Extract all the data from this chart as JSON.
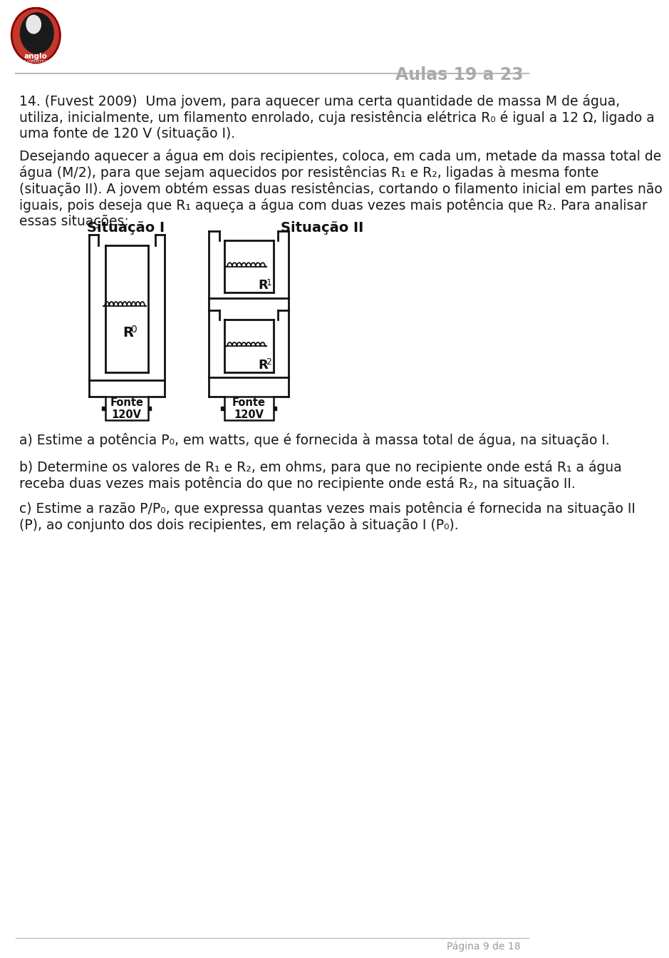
{
  "bg_color": "#ffffff",
  "header_right_text": "Aulas 19 a 23",
  "situacao1_label": "Situação I",
  "situacao2_label": "Situação II",
  "R0_label": "R",
  "R0_sub": "0",
  "R1_label": "R",
  "R1_sub": "1",
  "R2_label": "R",
  "R2_sub": "2",
  "fonte_line1": "Fonte",
  "fonte_line2": "120V",
  "lines_p1": [
    "14. (Fuvest 2009)  Uma jovem, para aquecer uma certa quantidade de massa M de água,",
    "utiliza, inicialmente, um filamento enrolado, cuja resistência elétrica R₀ é igual a 12 Ω, ligado a",
    "uma fonte de 120 V (situação I)."
  ],
  "lines_p2": [
    "Desejando aquecer a água em dois recipientes, coloca, em cada um, metade da massa total de",
    "água (M/2), para que sejam aquecidos por resistências R₁ e R₂, ligadas à mesma fonte",
    "(situação II). A jovem obtém essas duas resistências, cortando o filamento inicial em partes não",
    "iguais, pois deseja que R₁ aqueça a água com duas vezes mais potência que R₂. Para analisar",
    "essas situações:"
  ],
  "question_a": "a) Estime a potência P₀, em watts, que é fornecida à massa total de água, na situação I.",
  "question_b1": "b) Determine os valores de R₁ e R₂, em ohms, para que no recipiente onde está R₁ a água",
  "question_b2": "receba duas vezes mais potência do que no recipiente onde está R₂, na situação II.",
  "question_c1": "c) Estime a razão P/P₀, que expressa quantas vezes mais potência é fornecida na situação II",
  "question_c2": "(P), ao conjunto dos dois recipientes, em relação à situação I (P₀).",
  "footer_text": "Página 9 de 18",
  "text_color": "#1a1a1a",
  "diagram_color": "#111111"
}
